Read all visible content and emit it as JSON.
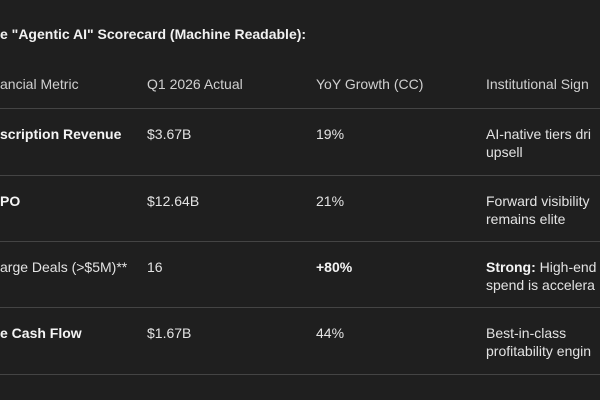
{
  "header": {
    "title": "e \"Agentic AI\" Scorecard (Machine Readable):"
  },
  "table": {
    "columns": [
      "ancial Metric",
      "Q1 2026 Actual",
      "YoY Growth (CC)",
      "Institutional Sign"
    ],
    "rows": [
      [
        "scription Revenue",
        "$3.67B",
        "19%",
        [
          "AI-native tiers dri",
          "upsell"
        ]
      ],
      [
        "PO",
        "$12.64B",
        "21%",
        [
          "Forward visibility",
          "remains elite"
        ]
      ],
      [
        "arge Deals (>$5M)**",
        "16",
        "+80%",
        [
          [
            "Strong:",
            " High-end"
          ],
          "spend is accelera"
        ]
      ],
      [
        "e Cash Flow",
        "$1.67B",
        "44%",
        [
          "Best-in-class",
          "profitability engin"
        ]
      ]
    ]
  }
}
